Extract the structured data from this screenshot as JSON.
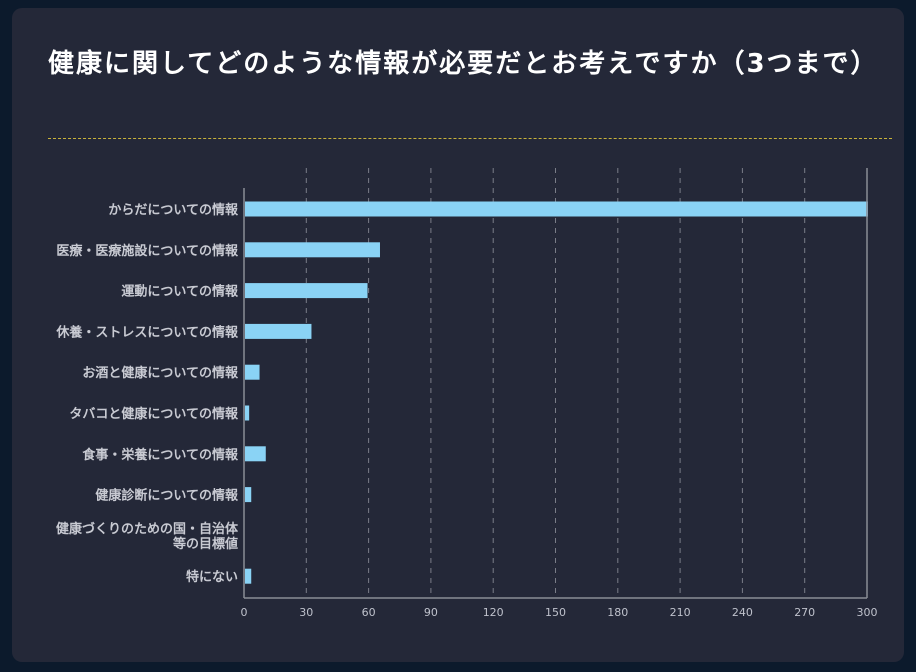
{
  "title": "健康に関してどのような情報が必要だとお考えですか（3つまで）",
  "colors": {
    "background": "#0c1a2c",
    "card": "#242838",
    "bar": "#8ad3f5",
    "divider": "#c9b33a",
    "grid": "#7a7d88",
    "axis": "#8a8d96"
  },
  "chart_data": {
    "type": "bar",
    "orientation": "horizontal",
    "title": "健康に関してどのような情報が必要だとお考えですか（3つまで）",
    "categories": [
      [
        "からだについての情報"
      ],
      [
        "医療・医療施設についての情報"
      ],
      [
        "運動についての情報"
      ],
      [
        "休養・ストレスについての情報"
      ],
      [
        "お酒と健康についての情報"
      ],
      [
        "タバコと健康についての情報"
      ],
      [
        "食事・栄養についての情報"
      ],
      [
        "健康診断についての情報"
      ],
      [
        "健康づくりのための国・自治体",
        "等の目標値"
      ],
      [
        "特にない"
      ]
    ],
    "values": [
      300,
      65,
      59,
      32,
      7,
      2,
      10,
      3,
      0,
      3
    ],
    "xlim": [
      0,
      300
    ],
    "xticks": [
      "0",
      "30",
      "60",
      "90",
      "120",
      "150",
      "180",
      "210",
      "240",
      "270",
      "300"
    ],
    "grid": "vertical dashed",
    "legend": "none"
  }
}
